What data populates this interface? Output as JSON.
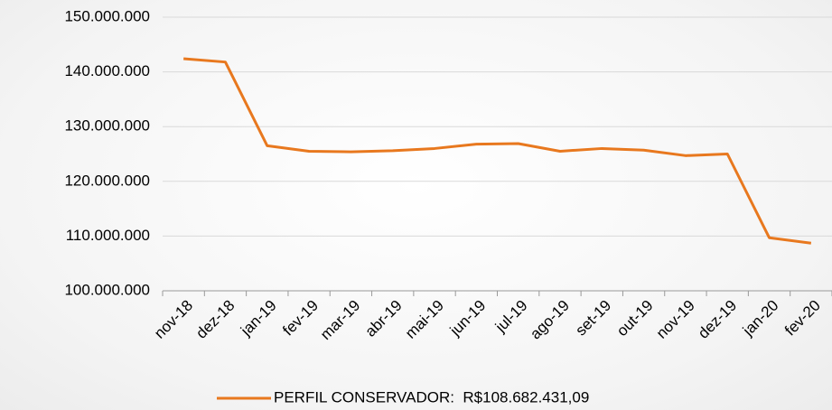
{
  "chart_data": {
    "type": "line",
    "categories": [
      "nov-18",
      "dez-18",
      "jan-19",
      "fev-19",
      "mar-19",
      "abr-19",
      "mai-19",
      "jun-19",
      "jul-19",
      "ago-19",
      "set-19",
      "out-19",
      "nov-19",
      "dez-19",
      "jan-20",
      "fev-20"
    ],
    "series": [
      {
        "name": "PERFIL CONSERVADOR:  R$108.682.431,09",
        "color": "#e8781e",
        "values": [
          142400000,
          141800000,
          126500000,
          125500000,
          125400000,
          125600000,
          126000000,
          126800000,
          126900000,
          125500000,
          126000000,
          125700000,
          124700000,
          125000000,
          109700000,
          108700000
        ]
      }
    ],
    "ylim": [
      100000000,
      150000000
    ],
    "yticks": [
      {
        "value": 100000000,
        "label": "100.000.000"
      },
      {
        "value": 110000000,
        "label": "110.000.000"
      },
      {
        "value": 120000000,
        "label": "120.000.000"
      },
      {
        "value": 130000000,
        "label": "130.000.000"
      },
      {
        "value": 140000000,
        "label": "140.000.000"
      },
      {
        "value": 150000000,
        "label": "150.000.000"
      }
    ],
    "grid": true
  }
}
